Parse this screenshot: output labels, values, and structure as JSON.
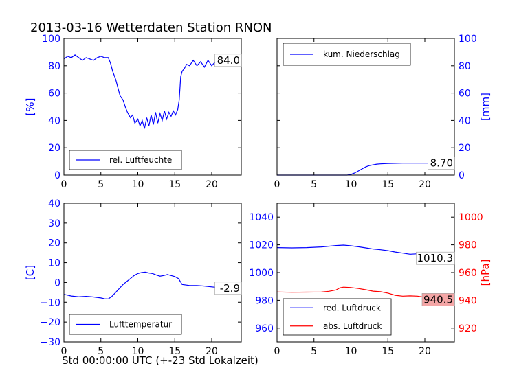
{
  "title": "2013-03-16 Wetterdaten Station RNON",
  "x_caption": "Std 00:00:00 UTC (+-23 Std Lokalzeit)",
  "colors": {
    "blue": "#0000ff",
    "red": "#ff0000",
    "axis": "#000000",
    "badge_red": "#f4a6a6"
  },
  "chart_data": [
    {
      "type": "line",
      "id": "humidity",
      "ylabel": "[%]",
      "ylabel_color": "#0000ff",
      "ylabel_side": "left",
      "xlim": [
        0,
        24
      ],
      "ylim": [
        0,
        100
      ],
      "x_ticks": [
        "0",
        "5",
        "10",
        "15",
        "20"
      ],
      "x_tick_values": [
        0,
        5,
        10,
        15,
        20
      ],
      "y_ticks": [
        "0",
        "20",
        "40",
        "60",
        "80",
        "100"
      ],
      "y_tick_values": [
        0,
        20,
        40,
        60,
        80,
        100
      ],
      "y_tick_side": "left",
      "y_tick_color": "#0000ff",
      "legend": {
        "placement": "lower-left",
        "entries": [
          {
            "label": "rel. Luftfeuchte",
            "color": "#0000ff"
          }
        ]
      },
      "last_value": {
        "text": "84.0",
        "color": "#000000",
        "bg": "#ffffff"
      },
      "series": [
        {
          "name": "rel. Luftfeuchte",
          "color": "#0000ff",
          "axis": "left",
          "x": [
            0,
            0.5,
            1,
            1.5,
            2,
            2.5,
            3,
            3.5,
            4,
            4.5,
            5,
            5.5,
            6,
            6.3,
            6.6,
            7,
            7.3,
            7.6,
            8,
            8.3,
            8.6,
            9,
            9.3,
            9.6,
            10,
            10.3,
            10.6,
            10.9,
            11.2,
            11.5,
            11.8,
            12.1,
            12.4,
            12.7,
            13,
            13.3,
            13.6,
            13.9,
            14.2,
            14.5,
            14.8,
            15.1,
            15.4,
            15.6,
            15.8,
            16,
            16.3,
            16.6,
            17,
            17.5,
            18,
            18.5,
            19,
            19.5,
            20,
            20.5,
            21,
            21.5,
            22,
            22.5,
            23,
            23.5,
            24
          ],
          "y": [
            85,
            87,
            86,
            88,
            86,
            84,
            86,
            85,
            84,
            86,
            87,
            86,
            86,
            82,
            76,
            70,
            64,
            58,
            55,
            50,
            46,
            42,
            44,
            38,
            41,
            36,
            40,
            34,
            42,
            36,
            44,
            37,
            46,
            38,
            45,
            40,
            47,
            41,
            46,
            43,
            47,
            44,
            48,
            55,
            72,
            76,
            78,
            81,
            80,
            84,
            80,
            83,
            79,
            84,
            80,
            83,
            81,
            82,
            84,
            80,
            83,
            81,
            84
          ]
        }
      ]
    },
    {
      "type": "line",
      "id": "precipitation",
      "ylabel": "[mm]",
      "ylabel_color": "#0000ff",
      "ylabel_side": "right",
      "xlim": [
        0,
        24
      ],
      "ylim": [
        0,
        100
      ],
      "x_ticks": [
        "0",
        "5",
        "10",
        "15",
        "20"
      ],
      "x_tick_values": [
        0,
        5,
        10,
        15,
        20
      ],
      "y_ticks": [
        "0",
        "20",
        "40",
        "60",
        "80",
        "100"
      ],
      "y_tick_values": [
        0,
        20,
        40,
        60,
        80,
        100
      ],
      "y_tick_side": "right",
      "y_tick_color": "#0000ff",
      "legend": {
        "placement": "top-left",
        "entries": [
          {
            "label": "kum. Niederschlag",
            "color": "#0000ff"
          }
        ]
      },
      "last_value": {
        "text": "8.70",
        "color": "#000000",
        "bg": "#ffffff"
      },
      "series": [
        {
          "name": "kum. Niederschlag",
          "color": "#0000ff",
          "axis": "left",
          "x": [
            0,
            5,
            9.5,
            10,
            10.5,
            11,
            11.5,
            12,
            12.5,
            13,
            13.5,
            14,
            15,
            16,
            17,
            18,
            20,
            22,
            24
          ],
          "y": [
            0,
            0,
            0,
            0.5,
            1.5,
            3,
            4.5,
            6,
            7,
            7.5,
            8,
            8.2,
            8.5,
            8.6,
            8.7,
            8.7,
            8.7,
            8.7,
            8.7
          ]
        }
      ]
    },
    {
      "type": "line",
      "id": "temperature",
      "ylabel": "[C]",
      "ylabel_color": "#0000ff",
      "ylabel_side": "left",
      "xlim": [
        0,
        24
      ],
      "ylim": [
        -30,
        40
      ],
      "x_ticks": [
        "0",
        "5",
        "10",
        "15",
        "20"
      ],
      "x_tick_values": [
        0,
        5,
        10,
        15,
        20
      ],
      "y_ticks": [
        "−30",
        "−20",
        "−10",
        "0",
        "10",
        "20",
        "30",
        "40"
      ],
      "y_tick_values": [
        -30,
        -20,
        -10,
        0,
        10,
        20,
        30,
        40
      ],
      "y_tick_side": "left",
      "y_tick_color": "#0000ff",
      "legend": {
        "placement": "lower-left",
        "entries": [
          {
            "label": "Lufttemperatur",
            "color": "#0000ff"
          }
        ]
      },
      "last_value": {
        "text": "-2.9",
        "color": "#000000",
        "bg": "#ffffff"
      },
      "series": [
        {
          "name": "Lufttemperatur",
          "color": "#0000ff",
          "axis": "left",
          "x": [
            0,
            1,
            2,
            3,
            4,
            5,
            5.5,
            6,
            6.5,
            7,
            7.5,
            8,
            8.5,
            9,
            9.5,
            10,
            10.5,
            11,
            11.5,
            12,
            12.5,
            13,
            13.5,
            14,
            14.5,
            15,
            15.5,
            16,
            17,
            18,
            19,
            20,
            21,
            22,
            23,
            24
          ],
          "y": [
            -6,
            -6.8,
            -7.2,
            -7,
            -7.3,
            -7.8,
            -8.2,
            -8.3,
            -7,
            -5,
            -3,
            -1,
            0.5,
            2,
            3.5,
            4.5,
            5,
            5.2,
            4.8,
            4.5,
            3.8,
            3.2,
            3.5,
            4,
            3.5,
            3,
            2,
            -1,
            -1.5,
            -1.5,
            -1.8,
            -2.2,
            -2.6,
            -2.8,
            -2.9,
            -2.9
          ]
        }
      ]
    },
    {
      "type": "line",
      "id": "pressure",
      "ylabel": "[hPa]",
      "ylabel_color": "#ff0000",
      "ylabel_side": "right",
      "xlim": [
        0,
        24
      ],
      "ylim": [
        950,
        1050
      ],
      "ylim_right": [
        910,
        1010
      ],
      "x_ticks": [
        "0",
        "5",
        "10",
        "15",
        "20"
      ],
      "x_tick_values": [
        0,
        5,
        10,
        15,
        20
      ],
      "y_ticks": [
        "960",
        "980",
        "1000",
        "1020",
        "1040"
      ],
      "y_tick_values": [
        960,
        980,
        1000,
        1020,
        1040
      ],
      "y_tick_side": "left",
      "y_tick_color": "#0000ff",
      "y_ticks_right": [
        "920",
        "940",
        "960",
        "980",
        "1000"
      ],
      "y_tick_values_right": [
        920,
        940,
        960,
        980,
        1000
      ],
      "y_tick_color_right": "#ff0000",
      "legend": {
        "placement": "lower-left",
        "entries": [
          {
            "label": "red. Luftdruck",
            "color": "#0000ff"
          },
          {
            "label": "abs. Luftdruck",
            "color": "#ff0000"
          }
        ]
      },
      "last_value": {
        "text": "1010.3",
        "color": "#000000",
        "bg": "#ffffff"
      },
      "last_value_2": {
        "text": "940.5",
        "color": "#000000",
        "bg": "#f4a6a6"
      },
      "series": [
        {
          "name": "red. Luftdruck",
          "color": "#0000ff",
          "axis": "left",
          "x": [
            0,
            2,
            4,
            6,
            7,
            8,
            9,
            10,
            11,
            12,
            13,
            14,
            15,
            16,
            17,
            18,
            19,
            20,
            21,
            22,
            23,
            24
          ],
          "y": [
            1018,
            1017.8,
            1018,
            1018.5,
            1019,
            1019.5,
            1019.8,
            1019.3,
            1018.6,
            1017.8,
            1017,
            1016.5,
            1015.8,
            1014.8,
            1014,
            1013.2,
            1013.5,
            1013,
            1012,
            1011,
            1010.5,
            1010.3
          ]
        },
        {
          "name": "abs. Luftdruck",
          "color": "#ff0000",
          "axis": "right",
          "x": [
            0,
            2,
            4,
            6,
            7,
            8,
            8.5,
            9,
            10,
            11,
            12,
            13,
            14,
            15,
            16,
            17,
            18,
            19,
            20,
            21,
            22,
            23,
            24
          ],
          "y": [
            946,
            945.8,
            945.9,
            946,
            946.5,
            947.5,
            949,
            949.5,
            949.2,
            948.5,
            947.6,
            946.6,
            946.2,
            945.2,
            943.6,
            943,
            943.2,
            943,
            942.2,
            941.6,
            941,
            940.8,
            940.5
          ]
        }
      ]
    }
  ]
}
